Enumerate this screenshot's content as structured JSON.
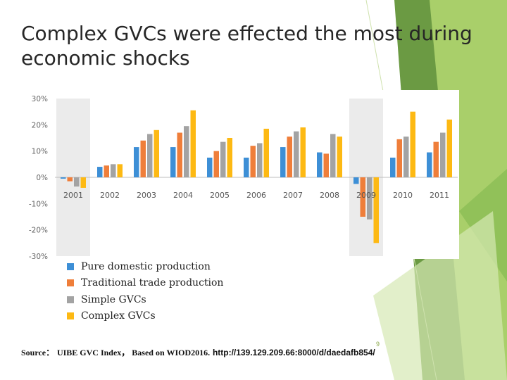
{
  "slide": {
    "title": "Complex GVCs were effected the most during economic shocks",
    "page_number": "9"
  },
  "source": {
    "prefix": "Source：",
    "text": "UIBE GVC Index， Based on WIOD2016.",
    "url": "http://139.129.209.66:8000/d/daedafb854/"
  },
  "colors": {
    "pure_domestic": "#3d8fd6",
    "traditional_trade": "#ef7e3a",
    "simple_gvcs": "#a3a3a3",
    "complex_gvcs": "#fdb913",
    "shading": "#ebebeb",
    "green_dark": "#6b9a43",
    "green_light": "#a9cf6a"
  },
  "chart_data": {
    "type": "bar",
    "categories": [
      "2001",
      "2002",
      "2003",
      "2004",
      "2005",
      "2006",
      "2007",
      "2008",
      "2009",
      "2010",
      "2011"
    ],
    "series": [
      {
        "name": "Pure domestic production",
        "values": [
          -0.5,
          4,
          11.5,
          11.5,
          7.5,
          7.5,
          11.5,
          9.5,
          -2.5,
          7.5,
          9.5
        ]
      },
      {
        "name": "Traditional trade production",
        "values": [
          -1.5,
          4.5,
          14,
          17,
          10,
          12,
          15.5,
          9,
          -15,
          14.5,
          13.5
        ]
      },
      {
        "name": "Simple GVCs",
        "values": [
          -3.5,
          5,
          16.5,
          19.5,
          13.5,
          13,
          17.5,
          16.5,
          -16,
          15.5,
          17
        ]
      },
      {
        "name": "Complex GVCs",
        "values": [
          -4,
          5,
          18,
          25.5,
          15,
          18.5,
          19,
          15.5,
          -25,
          25,
          22
        ]
      }
    ],
    "ylim": [
      -30,
      30
    ],
    "yticks": [
      "30%",
      "20%",
      "10%",
      "0%",
      "-10%",
      "-20%",
      "-30%"
    ],
    "shaded_categories": [
      "2001",
      "2009"
    ],
    "legend": [
      "Pure domestic production",
      "Traditional trade production",
      "Simple GVCs",
      "Complex GVCs"
    ],
    "legend_position": "bottom-left",
    "xlabel": "",
    "ylabel": ""
  }
}
